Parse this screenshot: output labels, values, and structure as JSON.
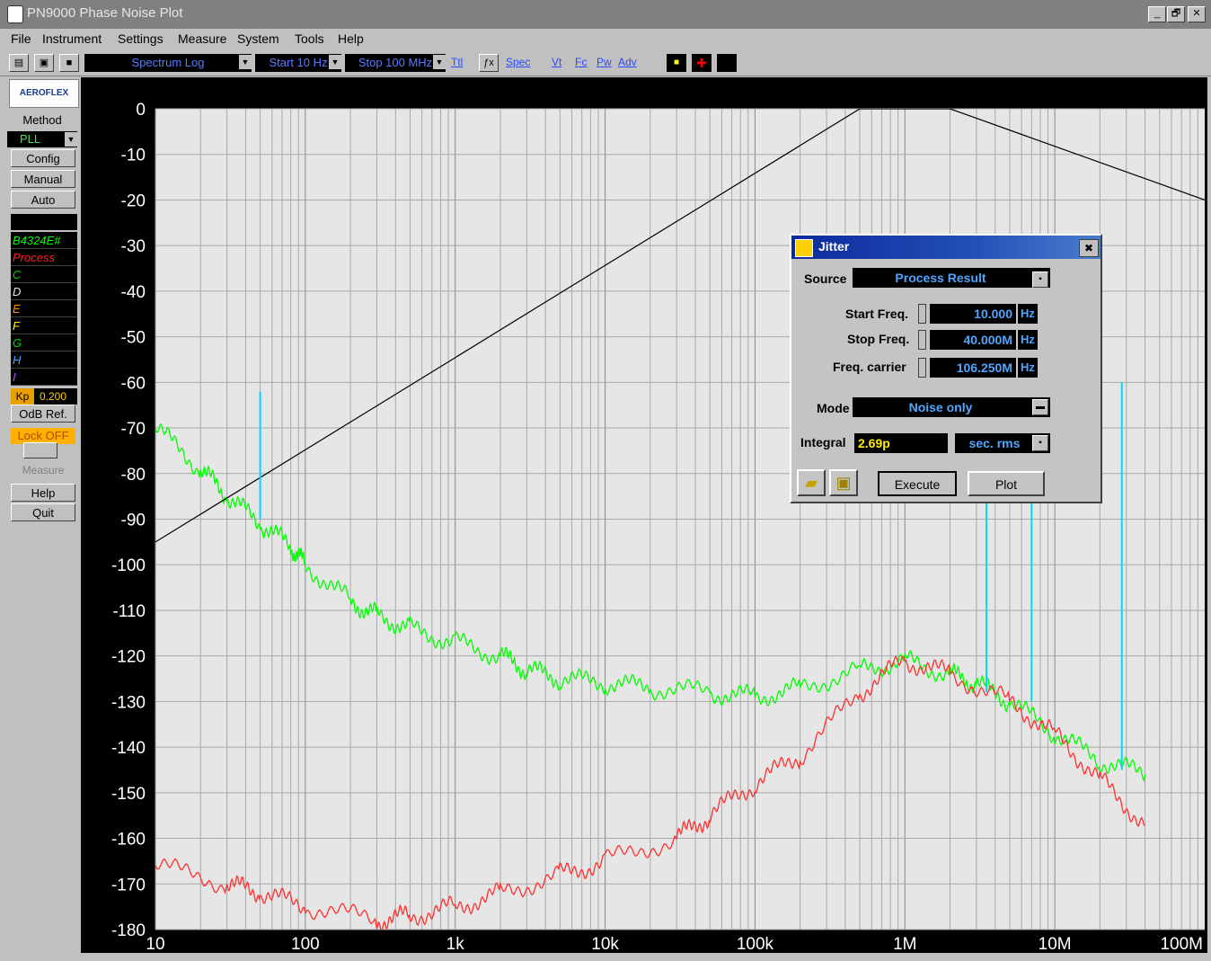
{
  "window": {
    "title": "PN9000 Phase Noise Plot",
    "min": "_",
    "max": "🗗",
    "close": "✕"
  },
  "menu": [
    "File",
    "Instrument",
    "Settings",
    "Measure",
    "System",
    "Tools",
    "Help"
  ],
  "toolbar": {
    "display_mode": "Spectrum Log",
    "start": "Start 10 Hz",
    "stop": "Stop 100 MHz",
    "links": [
      "Ttl",
      "Spec",
      "Vt",
      "Fc",
      "Pw",
      "Adv"
    ]
  },
  "left_panel": {
    "logo": "AEROFLEX",
    "method_label": "Method",
    "method_value": "PLL",
    "buttons": [
      "Config",
      "Manual",
      "Auto"
    ],
    "traces": [
      {
        "label": "B4324E#",
        "color": "#00ff00"
      },
      {
        "label": "Process",
        "color": "#ff2020"
      },
      {
        "label": "C",
        "color": "#00cc00"
      },
      {
        "label": "D",
        "color": "#e0e0e0"
      },
      {
        "label": "E",
        "color": "#ff8800"
      },
      {
        "label": "F",
        "color": "#ffee00"
      },
      {
        "label": "G",
        "color": "#00d000"
      },
      {
        "label": "H",
        "color": "#40a0ff"
      },
      {
        "label": "I",
        "color": "#c040ff"
      }
    ],
    "kp_label": "Kp",
    "kp_value": "0.200",
    "odb_ref": "OdB Ref.",
    "lock": "Lock OFF",
    "measure": "Measure",
    "help": "Help",
    "quit": "Quit"
  },
  "chart_data": {
    "type": "line",
    "x_scale": "log",
    "xlim": [
      10,
      100000000
    ],
    "ylim": [
      -180,
      0
    ],
    "x_tick_labels": [
      "10",
      "100",
      "1k",
      "10k",
      "100k",
      "1M",
      "10M",
      "100M"
    ],
    "y_tick_labels": [
      "0",
      "-10",
      "-20",
      "-30",
      "-40",
      "-50",
      "-60",
      "-70",
      "-80",
      "-90",
      "-100",
      "-110",
      "-120",
      "-130",
      "-140",
      "-150",
      "-160",
      "-170",
      "-180"
    ],
    "grid": true,
    "series": [
      {
        "color": "#00ff00",
        "x": [
          10,
          20,
          30,
          50,
          80,
          100,
          200,
          300,
          500,
          1000,
          2000,
          3000,
          5000,
          10000,
          20000,
          50000,
          100000,
          200000,
          500000,
          1000000,
          2000000,
          3000000,
          5000000,
          10000000,
          20000000,
          40000000
        ],
        "y": [
          -70,
          -79,
          -85,
          -91,
          -96,
          -100,
          -108,
          -111,
          -114,
          -117,
          -120,
          -123,
          -125,
          -126,
          -127,
          -128,
          -129,
          -127,
          -123,
          -121,
          -124,
          -126,
          -130,
          -137,
          -143,
          -146
        ]
      },
      {
        "color": "#ff3030",
        "x": [
          10,
          30,
          50,
          100,
          300,
          500,
          1000,
          2000,
          5000,
          10000,
          30000,
          50000,
          100000,
          200000,
          500000,
          1000000,
          2000000,
          5000000,
          10000000,
          20000000,
          40000000
        ],
        "y": [
          -166,
          -170,
          -172,
          -175,
          -178,
          -177,
          -175,
          -172,
          -168,
          -165,
          -160,
          -155,
          -148,
          -142,
          -128,
          -121,
          -124,
          -130,
          -137,
          -147,
          -157
        ]
      },
      {
        "color": "#000000",
        "x": [
          10,
          500000,
          2000000,
          100000000
        ],
        "y": [
          -95,
          0,
          0,
          -20
        ]
      },
      {
        "color": "#00d8ff",
        "x": [
          50,
          50,
          3500000,
          7000000,
          28000000
        ],
        "y": [
          -62,
          -90,
          -85,
          -85,
          -60
        ]
      }
    ]
  },
  "jitter": {
    "title": "Jitter",
    "source_label": "Source",
    "source_value": "Process Result",
    "start_label": "Start Freq.",
    "start_value": "10.000",
    "stop_label": "Stop Freq.",
    "stop_value": "40.000M",
    "carrier_label": "Freq. carrier",
    "carrier_value": "106.250M",
    "unit": "Hz",
    "mode_label": "Mode",
    "mode_value": "Noise only",
    "integral_label": "Integral",
    "integral_value": "2.69p",
    "integral_unit": "sec. rms",
    "execute": "Execute",
    "plot": "Plot"
  }
}
